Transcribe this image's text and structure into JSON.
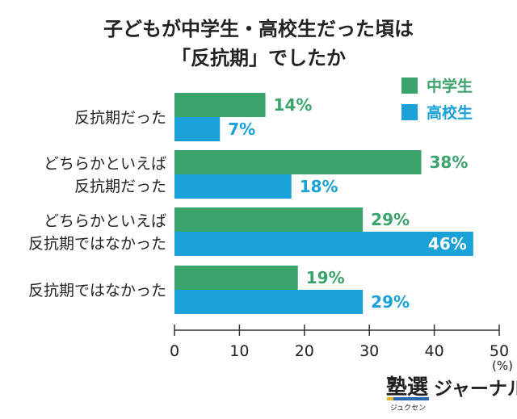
{
  "chart_data": {
    "type": "bar",
    "orientation": "horizontal",
    "title_lines": [
      "子どもが中学生・高校生だった頃は",
      "「反抗期」でしたか"
    ],
    "categories": [
      [
        "反抗期だった"
      ],
      [
        "どちらかといえば",
        "反抗期だった"
      ],
      [
        "どちらかといえば",
        "反抗期ではなかった"
      ],
      [
        "反抗期ではなかった"
      ]
    ],
    "series": [
      {
        "name": "中学生",
        "values": [
          14,
          38,
          29,
          19
        ],
        "labels": [
          "14%",
          "38%",
          "29%",
          "19%"
        ]
      },
      {
        "name": "高校生",
        "values": [
          7,
          18,
          46,
          29
        ],
        "labels": [
          "7%",
          "18%",
          "46%",
          "29%"
        ]
      }
    ],
    "xlim": [
      0,
      50
    ],
    "x_ticks": [
      0,
      10,
      20,
      30,
      40,
      50
    ],
    "x_tick_labels": [
      "0",
      "10",
      "20",
      "30",
      "40",
      "50"
    ],
    "unit": "(%)",
    "grid": false,
    "legend_position": "top-right",
    "colors": {
      "series_1": "#3BA36C",
      "series_2": "#1AA1D8",
      "axis": "#333333",
      "text": "#222222"
    }
  },
  "brand": {
    "logo_text": "塾選",
    "logo_ruby": "ジュクセン",
    "name": "ジャーナル"
  }
}
